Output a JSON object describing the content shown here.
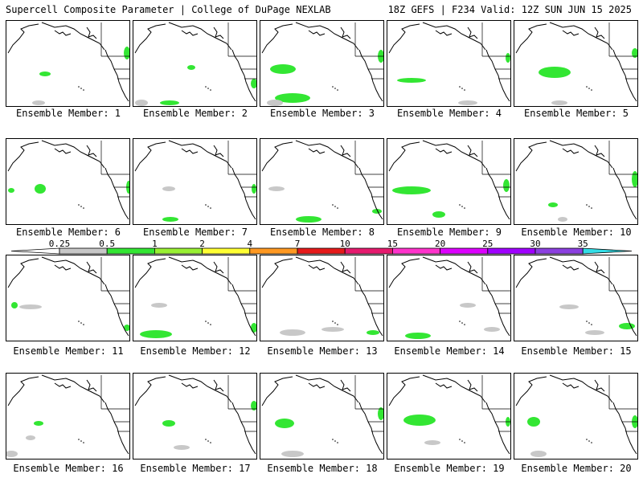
{
  "header": {
    "left": "Supercell Composite Parameter | College of DuPage NEXLAB",
    "right": "18Z GEFS | F234 Valid: 12Z SUN JUN 15 2025"
  },
  "panels": [
    {
      "label": "Ensemble Member: 1"
    },
    {
      "label": "Ensemble Member: 2"
    },
    {
      "label": "Ensemble Member: 3"
    },
    {
      "label": "Ensemble Member: 4"
    },
    {
      "label": "Ensemble Member: 5"
    },
    {
      "label": "Ensemble Member: 6"
    },
    {
      "label": "Ensemble Member: 7"
    },
    {
      "label": "Ensemble Member: 8"
    },
    {
      "label": "Ensemble Member: 9"
    },
    {
      "label": "Ensemble Member: 10"
    },
    {
      "label": "Ensemble Member: 11"
    },
    {
      "label": "Ensemble Member: 12"
    },
    {
      "label": "Ensemble Member: 13"
    },
    {
      "label": "Ensemble Member: 14"
    },
    {
      "label": "Ensemble Member: 15"
    },
    {
      "label": "Ensemble Member: 16"
    },
    {
      "label": "Ensemble Member: 17"
    },
    {
      "label": "Ensemble Member: 18"
    },
    {
      "label": "Ensemble Member: 19"
    },
    {
      "label": "Ensemble Member: 20"
    }
  ],
  "colorbar": {
    "levels": [
      "0.25",
      "0.5",
      "1",
      "2",
      "4",
      "7",
      "10",
      "15",
      "20",
      "25",
      "30",
      "35"
    ],
    "colors": [
      "#c8c8c8",
      "#33e633",
      "#99f033",
      "#ffff33",
      "#ff9922",
      "#e61a1a",
      "#e61a6e",
      "#ff33cc",
      "#dd00ff",
      "#a000ff",
      "#8c40e0",
      "#33dde6"
    ]
  }
}
